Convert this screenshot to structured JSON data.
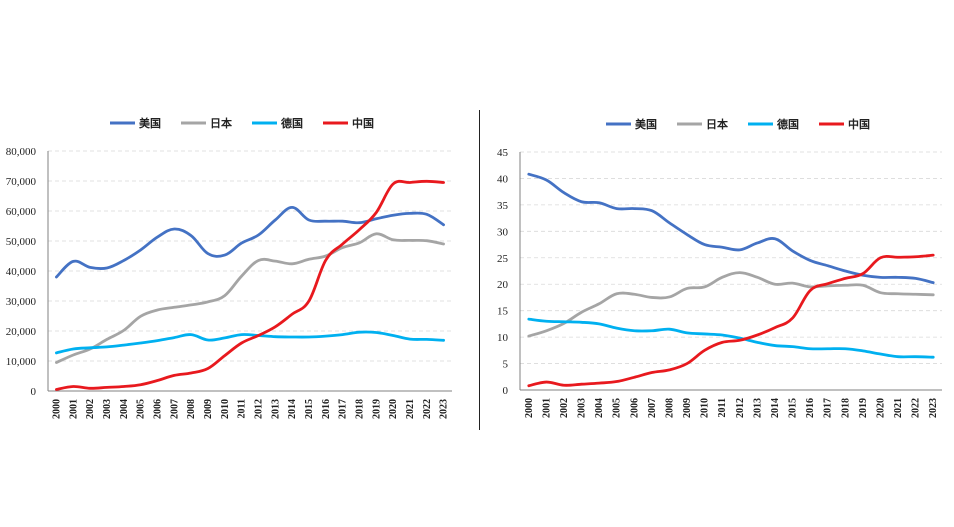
{
  "chart_data": [
    {
      "type": "line",
      "title": "",
      "xlabel": "",
      "ylabel": "",
      "ylim": [
        0,
        80000
      ],
      "yticks": [
        "0",
        "10,000",
        "20,000",
        "30,000",
        "40,000",
        "50,000",
        "60,000",
        "70,000",
        "80,000"
      ],
      "grid": "horizontal dashed",
      "legend": "top",
      "x": [
        "2000",
        "2001",
        "2002",
        "2003",
        "2004",
        "2005",
        "2006",
        "2007",
        "2008",
        "2009",
        "2010",
        "2011",
        "2012",
        "2013",
        "2014",
        "2015",
        "2016",
        "2017",
        "2018",
        "2019",
        "2020",
        "2021",
        "2022",
        "2023"
      ],
      "series": [
        {
          "name": "美国",
          "color": "#4472C4",
          "values": [
            38000,
            43200,
            41200,
            41000,
            43500,
            47000,
            51300,
            54000,
            51800,
            45800,
            45300,
            49300,
            52000,
            57000,
            61200,
            57000,
            56600,
            56600,
            56100,
            57400,
            58600,
            59200,
            58900,
            55400
          ]
        },
        {
          "name": "日本",
          "color": "#A5A5A5",
          "values": [
            9500,
            12000,
            14000,
            17200,
            20200,
            24900,
            27000,
            27900,
            28700,
            29700,
            31800,
            38300,
            43500,
            43300,
            42400,
            43900,
            45000,
            47800,
            49400,
            52400,
            50400,
            50200,
            50100,
            49000
          ]
        },
        {
          "name": "德国",
          "color": "#00B0F0",
          "values": [
            12700,
            14000,
            14400,
            14700,
            15300,
            16000,
            16800,
            17800,
            18800,
            17000,
            17700,
            18800,
            18500,
            18100,
            18000,
            18000,
            18300,
            18800,
            19600,
            19500,
            18500,
            17300,
            17200,
            16900
          ]
        },
        {
          "name": "中国",
          "color": "#E8191E",
          "values": [
            500,
            1500,
            900,
            1200,
            1500,
            2100,
            3500,
            5200,
            6000,
            7500,
            11800,
            16000,
            18500,
            21400,
            25600,
            30000,
            43600,
            49000,
            53800,
            59500,
            69000,
            69500,
            69900,
            69500
          ]
        }
      ]
    },
    {
      "type": "line",
      "title": "",
      "xlabel": "",
      "ylabel": "",
      "ylim": [
        0,
        45
      ],
      "yticks": [
        "0",
        "5",
        "10",
        "15",
        "20",
        "25",
        "30",
        "35",
        "40",
        "45"
      ],
      "grid": "horizontal dashed",
      "legend": "top",
      "x": [
        "2000",
        "2001",
        "2002",
        "2003",
        "2004",
        "2005",
        "2006",
        "2007",
        "2008",
        "2009",
        "2010",
        "2011",
        "2012",
        "2013",
        "2014",
        "2015",
        "2016",
        "2017",
        "2018",
        "2019",
        "2020",
        "2021",
        "2022",
        "2023"
      ],
      "series": [
        {
          "name": "美国",
          "color": "#4472C4",
          "values": [
            40.8,
            39.7,
            37.3,
            35.6,
            35.4,
            34.3,
            34.3,
            33.9,
            31.6,
            29.4,
            27.5,
            27.0,
            26.5,
            27.8,
            28.6,
            26.3,
            24.5,
            23.5,
            22.5,
            21.7,
            21.3,
            21.3,
            21.1,
            20.3
          ]
        },
        {
          "name": "日本",
          "color": "#A5A5A5",
          "values": [
            10.2,
            11.2,
            12.6,
            14.7,
            16.3,
            18.2,
            18.1,
            17.5,
            17.6,
            19.2,
            19.5,
            21.3,
            22.2,
            21.3,
            20.0,
            20.2,
            19.5,
            19.7,
            19.8,
            19.8,
            18.4,
            18.2,
            18.1,
            18.0
          ]
        },
        {
          "name": "德国",
          "color": "#00B0F0",
          "values": [
            13.4,
            13.0,
            12.9,
            12.8,
            12.5,
            11.7,
            11.2,
            11.2,
            11.5,
            10.8,
            10.6,
            10.4,
            9.8,
            9.0,
            8.4,
            8.2,
            7.8,
            7.8,
            7.8,
            7.4,
            6.8,
            6.3,
            6.3,
            6.2
          ]
        },
        {
          "name": "中国",
          "color": "#E8191E",
          "values": [
            0.8,
            1.5,
            0.9,
            1.1,
            1.3,
            1.6,
            2.4,
            3.3,
            3.8,
            5.0,
            7.5,
            9.0,
            9.4,
            10.4,
            11.8,
            13.6,
            18.8,
            20.1,
            21.1,
            22.0,
            25.0,
            25.1,
            25.2,
            25.5
          ]
        }
      ]
    }
  ]
}
